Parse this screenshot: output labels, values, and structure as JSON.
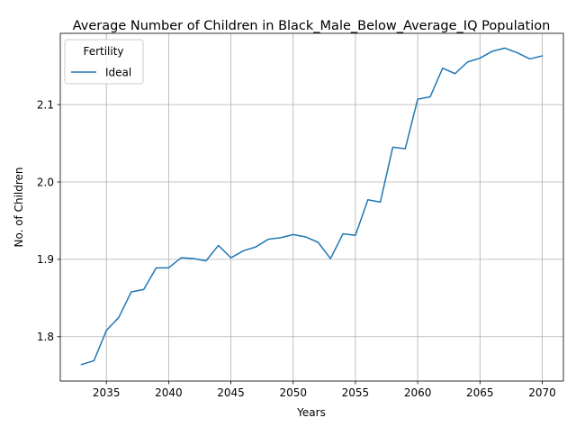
{
  "chart_data": {
    "type": "line",
    "title": "Average Number of Children in Black_Male_Below_Average_IQ Population",
    "xlabel": "Years",
    "ylabel": "No. of Children",
    "xlim": [
      2031.3,
      2071.7
    ],
    "ylim": [
      1.7427,
      2.1921
    ],
    "xticks": [
      2035,
      2040,
      2045,
      2050,
      2055,
      2060,
      2065,
      2070
    ],
    "yticks": [
      1.8,
      1.9,
      2.0,
      2.1
    ],
    "grid": true,
    "legend": {
      "title": "Fertility",
      "placement": "top-left"
    },
    "series": [
      {
        "name": "Ideal",
        "color": "#1f77b4",
        "x": [
          2033,
          2034,
          2035,
          2036,
          2037,
          2038,
          2039,
          2040,
          2041,
          2042,
          2043,
          2044,
          2045,
          2046,
          2047,
          2048,
          2049,
          2050,
          2051,
          2052,
          2053,
          2054,
          2055,
          2056,
          2057,
          2058,
          2059,
          2060,
          2061,
          2062,
          2063,
          2064,
          2065,
          2066,
          2067,
          2068,
          2069,
          2070
        ],
        "y": [
          1.764,
          1.769,
          1.808,
          1.825,
          1.858,
          1.861,
          1.889,
          1.889,
          1.902,
          1.901,
          1.898,
          1.918,
          1.902,
          1.911,
          1.916,
          1.926,
          1.928,
          1.932,
          1.929,
          1.922,
          1.901,
          1.933,
          1.931,
          1.977,
          1.974,
          2.045,
          2.043,
          2.107,
          2.11,
          2.147,
          2.14,
          2.155,
          2.16,
          2.169,
          2.173,
          2.167,
          2.159,
          2.163
        ]
      }
    ]
  }
}
